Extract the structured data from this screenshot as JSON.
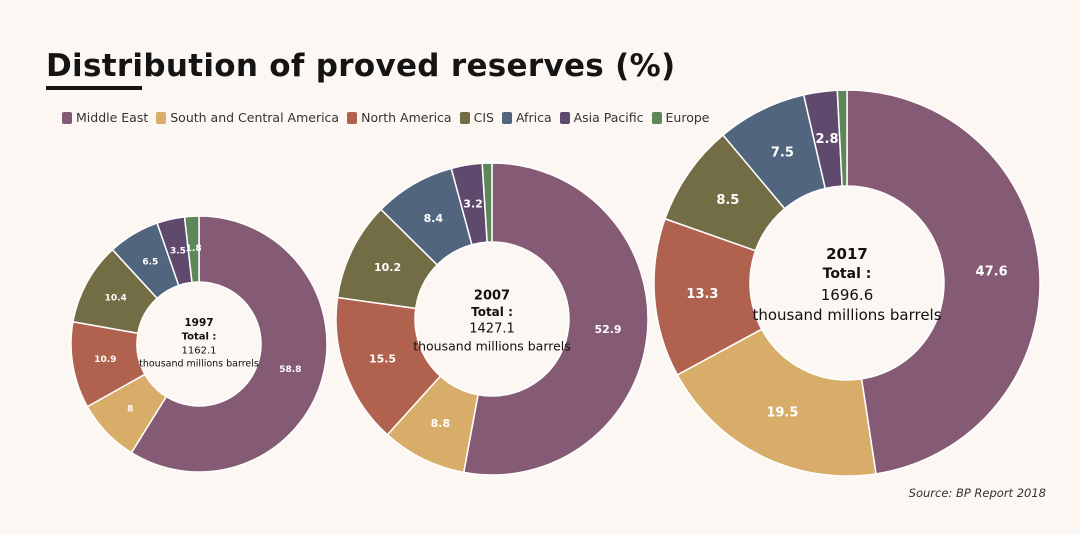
{
  "title": "Distribution of proved reserves (%)",
  "source": "Source: BP Report 2018",
  "legend": [
    {
      "label": "Middle East",
      "color": "#845a74"
    },
    {
      "label": "South and Central America",
      "color": "#d8ad6a"
    },
    {
      "label": "North America",
      "color": "#b0624f"
    },
    {
      "label": "CIS",
      "color": "#736d45"
    },
    {
      "label": "Africa",
      "color": "#51667e"
    },
    {
      "label": "Asia Pacific",
      "color": "#5f4a6e"
    },
    {
      "label": "Europe",
      "color": "#5e8759"
    }
  ],
  "chart_data": [
    {
      "type": "pie",
      "variant": "donut",
      "title": "1997",
      "total_label": "Total :",
      "total_value": "1162.1",
      "total_unit": "thousand millions barrels",
      "categories": [
        "Middle East",
        "South and Central America",
        "North America",
        "CIS",
        "Africa",
        "Asia Pacific",
        "Europe"
      ],
      "values": [
        58.8,
        8,
        10.9,
        10.4,
        6.5,
        3.5,
        1.8
      ],
      "value_labels": [
        "58.8",
        "8",
        "10.9",
        "10.4",
        "6.5",
        "3.5",
        "1.8"
      ]
    },
    {
      "type": "pie",
      "variant": "donut",
      "title": "2007",
      "total_label": "Total :",
      "total_value": "1427.1",
      "total_unit": "thousand millions barrels",
      "categories": [
        "Middle East",
        "South and Central America",
        "North America",
        "CIS",
        "Africa",
        "Asia Pacific",
        "Europe"
      ],
      "values": [
        52.9,
        8.8,
        15.5,
        10.2,
        8.4,
        3.2,
        1.0
      ],
      "value_labels": [
        "52.9",
        "8.8",
        "15.5",
        "10.2",
        "8.4",
        "3.2",
        ""
      ]
    },
    {
      "type": "pie",
      "variant": "donut",
      "title": "2017",
      "total_label": "Total :",
      "total_value": "1696.6",
      "total_unit": "thousand millions barrels",
      "categories": [
        "Middle East",
        "South and Central America",
        "North America",
        "CIS",
        "Africa",
        "Asia Pacific",
        "Europe"
      ],
      "values": [
        47.6,
        19.5,
        13.3,
        8.5,
        7.5,
        2.8,
        0.8
      ],
      "value_labels": [
        "47.6",
        "19.5",
        "13.3",
        "8.5",
        "7.5",
        "2.8",
        ""
      ]
    }
  ]
}
